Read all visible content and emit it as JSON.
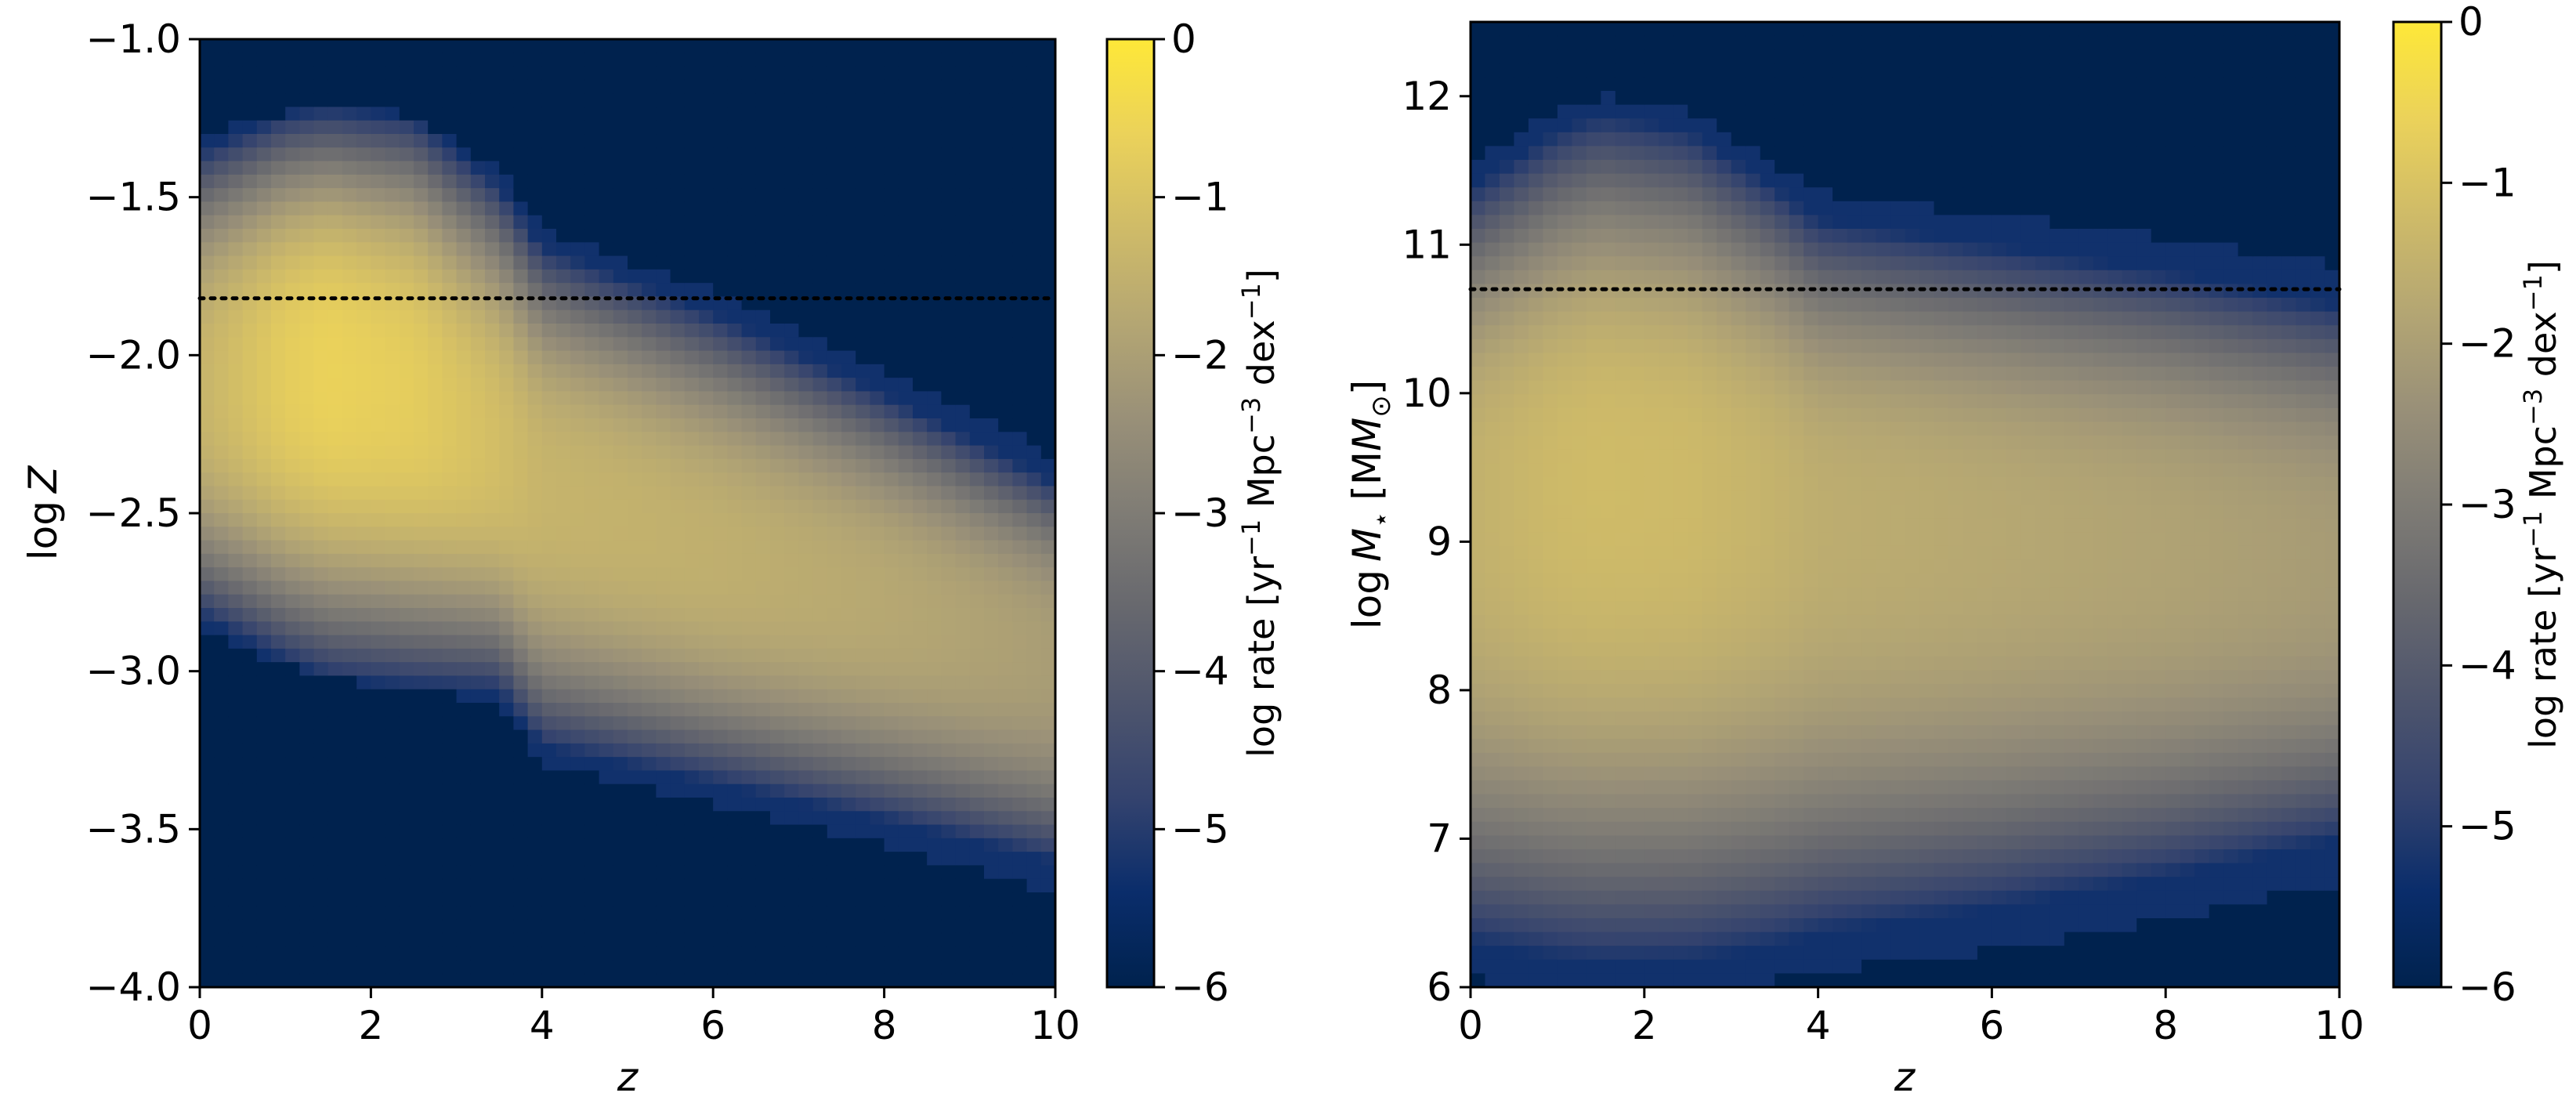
{
  "chart_data": [
    {
      "type": "heatmap",
      "xlabel": "z",
      "ylabel_prefix": "log",
      "ylabel_var": "Z",
      "ylabel_unit": "",
      "xlim": [
        0,
        10
      ],
      "ylim": [
        -4.0,
        -1.0
      ],
      "x_ticks": [
        0,
        2,
        4,
        6,
        8,
        10
      ],
      "x_tick_labels": [
        "0",
        "2",
        "4",
        "6",
        "8",
        "10"
      ],
      "y_ticks": [
        -4.0,
        -3.5,
        -3.0,
        -2.5,
        -2.0,
        -1.5,
        -1.0
      ],
      "y_tick_labels": [
        "−4.0",
        "−3.5",
        "−3.0",
        "−2.5",
        "−2.0",
        "−1.5",
        "−1.0"
      ],
      "reference_line": {
        "y": -1.82,
        "style": "dotted"
      },
      "colorbar": {
        "label_main": "log rate [yr",
        "label_sup1": "−1",
        "label_mid": " Mpc",
        "label_sup2": "−3",
        "label_mid2": " dex",
        "label_sup3": "−1",
        "label_end": "]",
        "range": [
          -6,
          0
        ],
        "ticks": [
          0,
          -1,
          -2,
          -3,
          -4,
          -5,
          -6
        ],
        "tick_labels": [
          "0",
          "−1",
          "−2",
          "−3",
          "−4",
          "−5",
          "−6"
        ],
        "colormap": "cividis"
      },
      "ridge": {
        "z": [
          0,
          1,
          1.5,
          2.5,
          3.5,
          4,
          6,
          8,
          10
        ],
        "center": [
          -2.1,
          -2.05,
          -2.04,
          -2.12,
          -2.3,
          -2.42,
          -2.62,
          -2.78,
          -2.95
        ],
        "upper": [
          -1.3,
          -1.23,
          -1.22,
          -1.24,
          -1.42,
          -1.6,
          -1.8,
          -2.05,
          -2.32
        ],
        "lower": [
          -2.88,
          -2.98,
          -3.02,
          -3.06,
          -3.1,
          -3.3,
          -3.42,
          -3.55,
          -3.7
        ],
        "peak": [
          -1.4,
          -0.75,
          -0.6,
          -0.75,
          -1.15,
          -1.4,
          -1.55,
          -1.75,
          -2.05
        ]
      }
    },
    {
      "type": "heatmap",
      "xlabel": "z",
      "ylabel_prefix": "log",
      "ylabel_var": "M",
      "ylabel_sub": "⋆",
      "ylabel_unit": "[M",
      "ylabel_unit_sub": "⊙",
      "ylabel_unit_end": "]",
      "xlim": [
        0,
        10
      ],
      "ylim": [
        6,
        12.5
      ],
      "x_ticks": [
        0,
        2,
        4,
        6,
        8,
        10
      ],
      "x_tick_labels": [
        "0",
        "2",
        "4",
        "6",
        "8",
        "10"
      ],
      "y_ticks": [
        6,
        7,
        8,
        9,
        10,
        11,
        12
      ],
      "y_tick_labels": [
        "6",
        "7",
        "8",
        "9",
        "10",
        "11",
        "12"
      ],
      "reference_line": {
        "y": 10.7,
        "style": "dotted"
      },
      "colorbar": {
        "label_main": "log rate [yr",
        "label_sup1": "−1",
        "label_mid": " Mpc",
        "label_sup2": "−3",
        "label_mid2": " dex",
        "label_sup3": "−1",
        "label_end": "]",
        "range": [
          -6,
          0
        ],
        "ticks": [
          0,
          -1,
          -2,
          -3,
          -4,
          -5,
          -6
        ],
        "tick_labels": [
          "0",
          "−1",
          "−2",
          "−3",
          "−4",
          "−5",
          "−6"
        ],
        "colormap": "cividis"
      },
      "ridge": {
        "z": [
          0,
          1,
          1.5,
          2.5,
          3.5,
          4,
          6,
          8,
          10
        ],
        "upper": [
          11.55,
          11.9,
          12.0,
          11.9,
          11.55,
          11.35,
          11.2,
          11.05,
          10.85
        ],
        "lower": [
          6.05,
          6.02,
          6.0,
          6.0,
          6.05,
          6.1,
          6.25,
          6.45,
          6.7
        ],
        "center": [
          9.3,
          9.4,
          9.45,
          9.4,
          9.3,
          9.2,
          9.1,
          9.0,
          8.9
        ],
        "peak": [
          -1.5,
          -1.25,
          -1.2,
          -1.25,
          -1.45,
          -1.6,
          -1.75,
          -1.9,
          -2.1
        ]
      }
    }
  ]
}
